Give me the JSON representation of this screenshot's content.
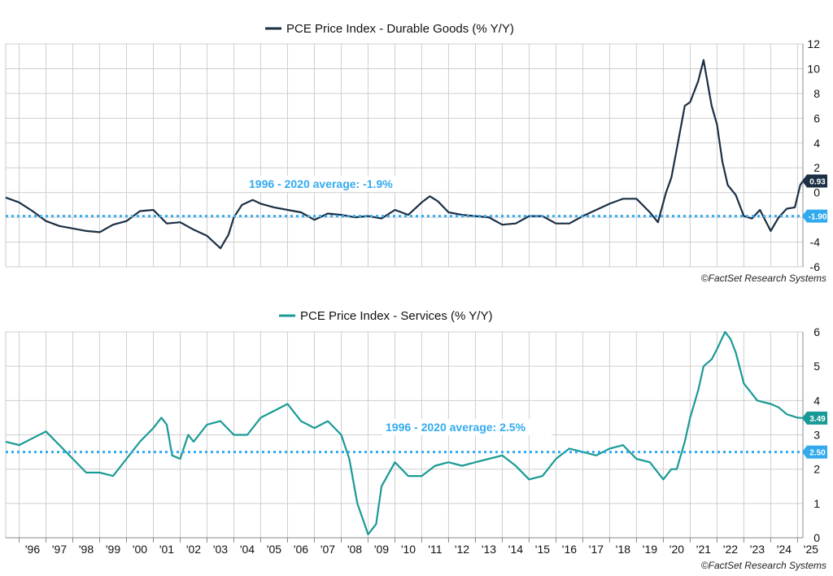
{
  "chart_data": [
    {
      "type": "line",
      "title": "PCE Price Index - Durable Goods (% Y/Y)",
      "ylim": [
        -6,
        12
      ],
      "yticks": [
        "12",
        "10",
        "8",
        "6",
        "4",
        "2",
        "0",
        "-2",
        "-4",
        "-6"
      ],
      "grid": true,
      "legend": "top-center",
      "series": [
        {
          "color": "#1b2f45",
          "x": [
            1995.5,
            1996.0,
            1996.5,
            1997.0,
            1997.5,
            1998.0,
            1998.5,
            1999.0,
            1999.5,
            2000.0,
            2000.5,
            2001.0,
            2001.5,
            2002.0,
            2002.5,
            2003.0,
            2003.5,
            2003.8,
            2004.0,
            2004.3,
            2004.7,
            2005.0,
            2005.5,
            2006.0,
            2006.5,
            2007.0,
            2007.5,
            2008.0,
            2008.5,
            2009.0,
            2009.5,
            2010.0,
            2010.5,
            2011.0,
            2011.3,
            2011.6,
            2012.0,
            2012.5,
            2013.0,
            2013.5,
            2014.0,
            2014.5,
            2015.0,
            2015.5,
            2016.0,
            2016.5,
            2017.0,
            2017.5,
            2018.0,
            2018.5,
            2019.0,
            2019.5,
            2019.8,
            2020.1,
            2020.3,
            2020.5,
            2020.8,
            2021.0,
            2021.3,
            2021.5,
            2021.8,
            2022.0,
            2022.2,
            2022.4,
            2022.7,
            2023.0,
            2023.3,
            2023.6,
            2024.0,
            2024.3,
            2024.6,
            2024.9,
            2025.1,
            2025.2
          ],
          "values": [
            -0.4,
            -0.8,
            -1.5,
            -2.3,
            -2.7,
            -2.9,
            -3.1,
            -3.2,
            -2.6,
            -2.3,
            -1.5,
            -1.4,
            -2.5,
            -2.4,
            -3.0,
            -3.5,
            -4.5,
            -3.4,
            -2.0,
            -1.0,
            -0.6,
            -0.9,
            -1.2,
            -1.4,
            -1.6,
            -2.2,
            -1.7,
            -1.8,
            -2.0,
            -1.9,
            -2.1,
            -1.4,
            -1.8,
            -0.8,
            -0.3,
            -0.7,
            -1.6,
            -1.8,
            -1.9,
            -2.0,
            -2.6,
            -2.5,
            -1.9,
            -1.9,
            -2.5,
            -2.5,
            -1.9,
            -1.4,
            -0.9,
            -0.5,
            -0.5,
            -1.6,
            -2.4,
            0.0,
            1.2,
            3.5,
            7.0,
            7.3,
            9.0,
            10.7,
            7.0,
            5.5,
            2.5,
            0.6,
            -0.2,
            -1.9,
            -2.1,
            -1.4,
            -3.1,
            -2.0,
            -1.3,
            -1.2,
            0.6,
            0.93
          ]
        },
        {
          "color": "#33aaee",
          "dashed": true,
          "x": [
            1995.5,
            2025.2
          ],
          "values": [
            -1.9,
            -1.9
          ]
        }
      ],
      "annotations": [
        "1996 - 2020 average: -1.9%"
      ],
      "last_value_labels": [
        "0.93",
        "-1.90"
      ],
      "credit": "©FactSet Research Systems"
    },
    {
      "type": "line",
      "title": "PCE Price Index - Services (% Y/Y)",
      "ylim": [
        0,
        6
      ],
      "yticks": [
        "6",
        "5",
        "4",
        "3",
        "2",
        "1",
        "0"
      ],
      "grid": true,
      "legend": "top-center",
      "xticks": [
        "'96",
        "'97",
        "'98",
        "'99",
        "'00",
        "'01",
        "'02",
        "'03",
        "'04",
        "'05",
        "'06",
        "'07",
        "'08",
        "'09",
        "'10",
        "'11",
        "'12",
        "'13",
        "'14",
        "'15",
        "'16",
        "'17",
        "'18",
        "'19",
        "'20",
        "'21",
        "'22",
        "'23",
        "'24",
        "'25"
      ],
      "series": [
        {
          "color": "#1a9a96",
          "x": [
            1995.5,
            1996.0,
            1996.5,
            1997.0,
            1997.5,
            1998.0,
            1998.5,
            1999.0,
            1999.5,
            2000.0,
            2000.5,
            2001.0,
            2001.3,
            2001.5,
            2001.7,
            2002.0,
            2002.3,
            2002.5,
            2003.0,
            2003.5,
            2004.0,
            2004.5,
            2005.0,
            2005.5,
            2006.0,
            2006.5,
            2007.0,
            2007.5,
            2008.0,
            2008.3,
            2008.6,
            2009.0,
            2009.3,
            2009.5,
            2010.0,
            2010.5,
            2011.0,
            2011.5,
            2012.0,
            2012.5,
            2013.0,
            2013.5,
            2014.0,
            2014.5,
            2015.0,
            2015.5,
            2016.0,
            2016.5,
            2017.0,
            2017.5,
            2018.0,
            2018.5,
            2019.0,
            2019.5,
            2020.0,
            2020.3,
            2020.5,
            2020.8,
            2021.0,
            2021.3,
            2021.5,
            2021.8,
            2022.0,
            2022.3,
            2022.5,
            2022.7,
            2023.0,
            2023.5,
            2024.0,
            2024.3,
            2024.6,
            2025.0,
            2025.2
          ],
          "values": [
            2.8,
            2.7,
            2.9,
            3.1,
            2.7,
            2.3,
            1.9,
            1.9,
            1.8,
            2.3,
            2.8,
            3.2,
            3.5,
            3.3,
            2.4,
            2.3,
            3.0,
            2.8,
            3.3,
            3.4,
            3.0,
            3.0,
            3.5,
            3.7,
            3.9,
            3.4,
            3.2,
            3.4,
            3.0,
            2.3,
            1.0,
            0.1,
            0.4,
            1.5,
            2.2,
            1.8,
            1.8,
            2.1,
            2.2,
            2.1,
            2.2,
            2.3,
            2.4,
            2.1,
            1.7,
            1.8,
            2.3,
            2.6,
            2.5,
            2.4,
            2.6,
            2.7,
            2.3,
            2.2,
            1.7,
            2.0,
            2.0,
            2.8,
            3.5,
            4.3,
            5.0,
            5.2,
            5.5,
            6.0,
            5.8,
            5.4,
            4.5,
            4.0,
            3.9,
            3.8,
            3.6,
            3.5,
            3.49
          ]
        },
        {
          "color": "#33aaee",
          "dashed": true,
          "x": [
            1995.5,
            2025.2
          ],
          "values": [
            2.5,
            2.5
          ]
        }
      ],
      "annotations": [
        "1996 - 2020 average: 2.5%"
      ],
      "last_value_labels": [
        "3.49",
        "2.50"
      ],
      "credit": "©FactSet Research Systems"
    }
  ]
}
